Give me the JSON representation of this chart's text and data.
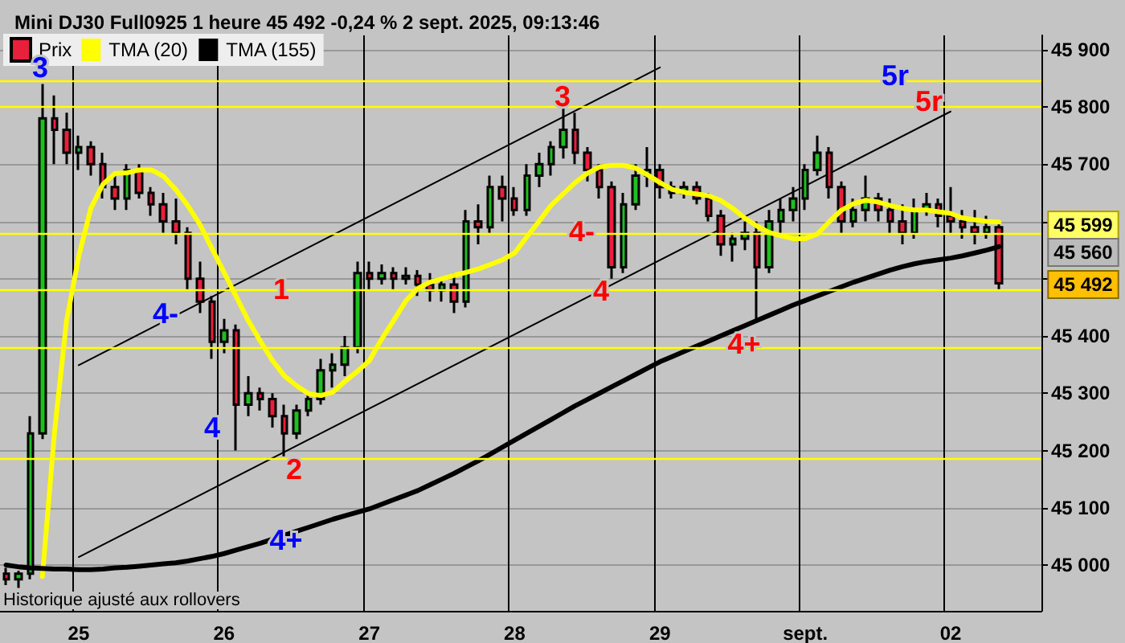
{
  "chart_data": {
    "type": "candlestick",
    "title": "Mini DJ30 Full0925 1 heure 45 492 -0,24 % 2 sept. 2025, 09:13:46",
    "categories": [
      null,
      null,
      null,
      null,
      null,
      null,
      "25",
      null,
      null,
      null,
      null,
      null,
      null,
      null,
      null,
      null,
      null,
      null,
      "26",
      null,
      null,
      null,
      null,
      null,
      null,
      null,
      null,
      null,
      null,
      null,
      "27",
      null,
      null,
      null,
      null,
      null,
      null,
      null,
      null,
      null,
      null,
      null,
      "28",
      null,
      null,
      null,
      null,
      null,
      null,
      null,
      null,
      null,
      null,
      null,
      "29",
      null,
      null,
      null,
      null,
      null,
      null,
      null,
      null,
      null,
      null,
      null,
      "sept.",
      null,
      null,
      null,
      null,
      null,
      null,
      null,
      null,
      null,
      null,
      null,
      "02",
      null,
      null,
      null,
      null,
      null,
      null,
      null
    ],
    "series": [
      {
        "name": "Prix",
        "colors": [
          "#e8203c",
          "#1fbf1f",
          "#1fbf1f",
          "#1fbf1f",
          "#e8203c",
          "#e8203c",
          "#1fbf1f",
          "#e8203c",
          "#e8203c",
          "#e8203c",
          "#1fbf1f",
          "#e8203c",
          "#e8203c",
          "#e8203c",
          "#e8203c",
          "#e8203c",
          "#e8203c",
          "#e8203c",
          "#1fbf1f",
          "#e8203c",
          "#1fbf1f",
          "#e8203c",
          "#e8203c",
          "#e8203c",
          "#1fbf1f",
          "#1fbf1f",
          "#1fbf1f",
          "#1fbf1f",
          "#1fbf1f",
          "#1fbf1f",
          "#e8203c",
          "#1fbf1f",
          "#e8203c",
          "#1fbf1f",
          "#e8203c",
          "#e8203c",
          "#1fbf1f",
          "#e8203c",
          "#1fbf1f",
          "#e8203c",
          "#1fbf1f",
          "#e8203c",
          "#e8203c",
          "#1fbf1f",
          "#1fbf1f",
          "#1fbf1f",
          "#1fbf1f",
          "#e8203c",
          "#e8203c",
          "#e8203c",
          "#e8203c",
          "#1fbf1f",
          "#1fbf1f",
          "#1fbf1f",
          "#e8203c",
          "#e8203c",
          "#1fbf1f",
          "#e8203c",
          "#e8203c",
          "#e8203c",
          "#1fbf1f",
          "#1fbf1f",
          "#e8203c",
          "#1fbf1f",
          "#1fbf1f",
          "#1fbf1f",
          "#1fbf1f",
          "#1fbf1f",
          "#e8203c",
          "#e8203c",
          "#1fbf1f",
          "#1fbf1f",
          "#e8203c",
          "#e8203c",
          "#e8203c",
          "#1fbf1f",
          "#1fbf1f",
          "#e8203c",
          "#e8203c",
          "#e8203c",
          "#e8203c",
          "#1fbf1f",
          "#e8203c",
          null,
          null,
          null
        ],
        "ohlc": [
          [
            44985,
            44995,
            44965,
            44975
          ],
          [
            44975,
            44990,
            44960,
            44985
          ],
          [
            44985,
            45260,
            44975,
            45230
          ],
          [
            45230,
            45840,
            45220,
            45780
          ],
          [
            45780,
            45820,
            45700,
            45760
          ],
          [
            45760,
            45790,
            45700,
            45720
          ],
          [
            45720,
            45750,
            45690,
            45730
          ],
          [
            45730,
            45740,
            45680,
            45700
          ],
          [
            45700,
            45720,
            45640,
            45660
          ],
          [
            45660,
            45680,
            45620,
            45640
          ],
          [
            45640,
            45700,
            45620,
            45690
          ],
          [
            45690,
            45700,
            45640,
            45650
          ],
          [
            45650,
            45660,
            45610,
            45630
          ],
          [
            45630,
            45650,
            45580,
            45600
          ],
          [
            45600,
            45640,
            45560,
            45580
          ],
          [
            45580,
            45590,
            45480,
            45500
          ],
          [
            45500,
            45530,
            45440,
            45460
          ],
          [
            45460,
            45470,
            45360,
            45390
          ],
          [
            45390,
            45430,
            45370,
            45410
          ],
          [
            45410,
            45420,
            45200,
            45280
          ],
          [
            45280,
            45330,
            45260,
            45300
          ],
          [
            45300,
            45310,
            45270,
            45290
          ],
          [
            45290,
            45300,
            45240,
            45260
          ],
          [
            45260,
            45280,
            45190,
            45230
          ],
          [
            45230,
            45280,
            45220,
            45270
          ],
          [
            45270,
            45300,
            45260,
            45290
          ],
          [
            45290,
            45360,
            45280,
            45340
          ],
          [
            45340,
            45370,
            45310,
            45350
          ],
          [
            45350,
            45400,
            45330,
            45380
          ],
          [
            45380,
            45530,
            45370,
            45510
          ],
          [
            45510,
            45530,
            45480,
            45500
          ],
          [
            45500,
            45525,
            45490,
            45510
          ],
          [
            45510,
            45520,
            45480,
            45500
          ],
          [
            45500,
            45520,
            45490,
            45505
          ],
          [
            45505,
            45515,
            45470,
            45490
          ],
          [
            45490,
            45510,
            45460,
            45480
          ],
          [
            45480,
            45500,
            45460,
            45490
          ],
          [
            45490,
            45510,
            45440,
            45460
          ],
          [
            45460,
            45620,
            45450,
            45600
          ],
          [
            45600,
            45630,
            45560,
            45590
          ],
          [
            45590,
            45680,
            45580,
            45660
          ],
          [
            45660,
            45680,
            45600,
            45640
          ],
          [
            45640,
            45660,
            45610,
            45620
          ],
          [
            45620,
            45700,
            45610,
            45680
          ],
          [
            45680,
            45720,
            45660,
            45700
          ],
          [
            45700,
            45740,
            45680,
            45730
          ],
          [
            45730,
            45800,
            45710,
            45760
          ],
          [
            45760,
            45790,
            45700,
            45720
          ],
          [
            45720,
            45730,
            45670,
            45690
          ],
          [
            45690,
            45700,
            45640,
            45660
          ],
          [
            45660,
            45670,
            45500,
            45520
          ],
          [
            45520,
            45650,
            45510,
            45630
          ],
          [
            45630,
            45700,
            45620,
            45680
          ],
          [
            45680,
            45730,
            45660,
            45690
          ],
          [
            45690,
            45700,
            45640,
            45660
          ],
          [
            45660,
            45670,
            45640,
            45650
          ],
          [
            45650,
            45670,
            45640,
            45660
          ],
          [
            45660,
            45670,
            45630,
            45640
          ],
          [
            45640,
            45650,
            45600,
            45610
          ],
          [
            45610,
            45620,
            45540,
            45560
          ],
          [
            45560,
            45580,
            45530,
            45570
          ],
          [
            45570,
            45600,
            45550,
            45580
          ],
          [
            45580,
            45600,
            45430,
            45520
          ],
          [
            45520,
            45620,
            45510,
            45600
          ],
          [
            45600,
            45640,
            45580,
            45620
          ],
          [
            45620,
            45660,
            45600,
            45640
          ],
          [
            45640,
            45700,
            45620,
            45690
          ],
          [
            45690,
            45750,
            45680,
            45720
          ],
          [
            45720,
            45730,
            45640,
            45660
          ],
          [
            45660,
            45670,
            45580,
            45600
          ],
          [
            45600,
            45640,
            45590,
            45620
          ],
          [
            45620,
            45680,
            45600,
            45640
          ],
          [
            45640,
            45650,
            45600,
            45620
          ],
          [
            45620,
            45640,
            45580,
            45600
          ],
          [
            45600,
            45630,
            45560,
            45580
          ],
          [
            45580,
            45640,
            45570,
            45620
          ],
          [
            45620,
            45650,
            45610,
            45630
          ],
          [
            45630,
            45640,
            45590,
            45610
          ],
          [
            45610,
            45660,
            45580,
            45600
          ],
          [
            45600,
            45620,
            45570,
            45590
          ],
          [
            45590,
            45620,
            45560,
            45580
          ],
          [
            45580,
            45610,
            45570,
            45590
          ],
          [
            45590,
            45600,
            45480,
            45492
          ],
          null,
          null,
          null
        ]
      },
      {
        "name": "TMA (20)",
        "type": "line",
        "color": "#ffff00",
        "values": [
          null,
          null,
          null,
          44980,
          45232,
          45427,
          45539,
          45623,
          45665,
          45684,
          45685,
          45690,
          45690,
          45679,
          45656,
          45628,
          45595,
          45553,
          45511,
          45469,
          45427,
          45391,
          45357,
          45330,
          45313,
          45299,
          45296,
          45302,
          45321,
          45338,
          45357,
          45394,
          45427,
          45461,
          45483,
          45494,
          45500,
          45506,
          45511,
          45517,
          45525,
          45533,
          45545,
          45573,
          45600,
          45628,
          45648,
          45668,
          45684,
          45695,
          45698,
          45698,
          45693,
          45681,
          45668,
          45656,
          45651,
          45648,
          45645,
          45637,
          45623,
          45606,
          45592,
          45581,
          45575,
          45570,
          45570,
          45578,
          45600,
          45620,
          45631,
          45637,
          45634,
          45628,
          45623,
          45620,
          45620,
          45617,
          45614,
          45606,
          45603,
          45600,
          45599,
          null,
          null,
          null
        ]
      },
      {
        "name": "TMA (155)",
        "type": "line",
        "color": "#000000",
        "values": [
          45000,
          44997,
          44995,
          44994,
          44993,
          44993,
          44992,
          44992,
          44993,
          44995,
          44996,
          44998,
          45000,
          45002,
          45004,
          45007,
          45011,
          45015,
          45020,
          45026,
          45032,
          45038,
          45045,
          45052,
          45059,
          45066,
          45073,
          45080,
          45086,
          45092,
          45098,
          45106,
          45114,
          45122,
          45130,
          45140,
          45150,
          45160,
          45171,
          45182,
          45194,
          45206,
          45218,
          45230,
          45242,
          45254,
          45266,
          45278,
          45289,
          45300,
          45311,
          45322,
          45333,
          45344,
          45355,
          45364,
          45373,
          45382,
          45391,
          45400,
          45409,
          45418,
          45427,
          45436,
          45445,
          45454,
          45462,
          45470,
          45478,
          45486,
          45494,
          45501,
          45508,
          45515,
          45521,
          45526,
          45530,
          45533,
          45536,
          45540,
          45545,
          45550,
          45556,
          null,
          null,
          null
        ]
      },
      {
        "type": "line",
        "color": "#000000",
        "x": [
          "25",
          "29"
        ],
        "values": [
          45349,
          45869
        ]
      },
      {
        "type": "line",
        "color": "#000000",
        "x": [
          "25",
          "02"
        ],
        "values": [
          45014,
          45792
        ]
      }
    ],
    "ylim": [
      44920,
      45925
    ],
    "yticks": [
      {
        "value": 45000,
        "label": "45 000"
      },
      {
        "value": 45100,
        "label": "45 100"
      },
      {
        "value": 45200,
        "label": "45 200"
      },
      {
        "value": 45300,
        "label": "45 300"
      },
      {
        "value": 45400,
        "label": "45 400"
      },
      {
        "value": 45500,
        "label": null
      },
      {
        "value": 45600,
        "label": null
      },
      {
        "value": 45700,
        "label": "45 700"
      },
      {
        "value": 45800,
        "label": "45 800"
      },
      {
        "value": 45900,
        "label": "45 900"
      }
    ],
    "ref_lines": [
      {
        "axis": "y",
        "value": 45845,
        "color": "#ffff00"
      },
      {
        "axis": "y",
        "value": 45800,
        "color": "#ffff00"
      },
      {
        "axis": "y",
        "value": 45580,
        "color": "#ffff00"
      },
      {
        "axis": "y",
        "value": 45480,
        "color": "#ffff00"
      },
      {
        "axis": "y",
        "value": 45380,
        "color": "#ffff00"
      },
      {
        "axis": "y",
        "value": 45185,
        "color": "#ffff00"
      }
    ],
    "annotations": [
      "3",
      "4-",
      "4",
      "1",
      "2",
      "4+",
      "3",
      "4-",
      "4",
      "4+",
      "5r",
      "5r",
      "Historique ajusté aux rollovers",
      "45 599",
      "45 560",
      "45 492"
    ],
    "grid": true,
    "legend": "top left"
  }
}
